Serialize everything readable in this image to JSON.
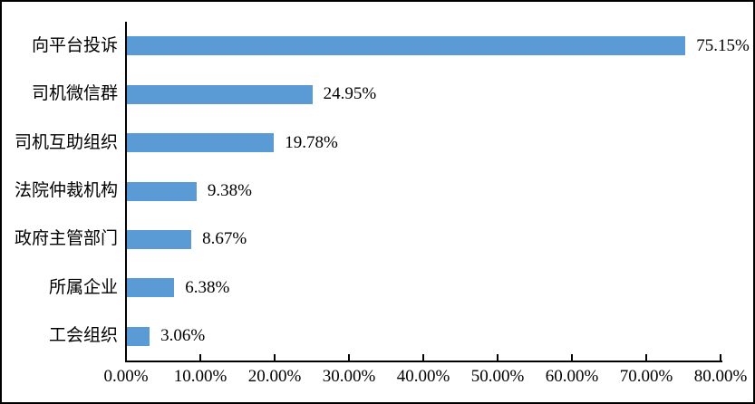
{
  "figure": {
    "background": "#ffffff",
    "frame_border_color": "#000000"
  },
  "chart_data": {
    "type": "bar",
    "orientation": "horizontal",
    "title": "",
    "xlabel": "",
    "ylabel": "",
    "grid": false,
    "legend": false,
    "bar_color": "#5B9BD5",
    "axis_color": "#000000",
    "text_color": "#000000",
    "xlim": [
      0,
      80
    ],
    "categories": [
      "向平台投诉",
      "司机微信群",
      "司机互助组织",
      "法院仲裁机构",
      "政府主管部门",
      "所属企业",
      "工会组织"
    ],
    "values": [
      75.15,
      24.95,
      19.78,
      9.38,
      8.67,
      6.38,
      3.06
    ],
    "value_labels": [
      "75.15%",
      "24.95%",
      "19.78%",
      "9.38%",
      "8.67%",
      "6.38%",
      "3.06%"
    ],
    "x_tick_values": [
      0,
      10,
      20,
      30,
      40,
      50,
      60,
      70,
      80
    ],
    "x_tick_labels": [
      "0.00%",
      "10.00%",
      "20.00%",
      "30.00%",
      "40.00%",
      "50.00%",
      "60.00%",
      "70.00%",
      "80.00%"
    ]
  }
}
